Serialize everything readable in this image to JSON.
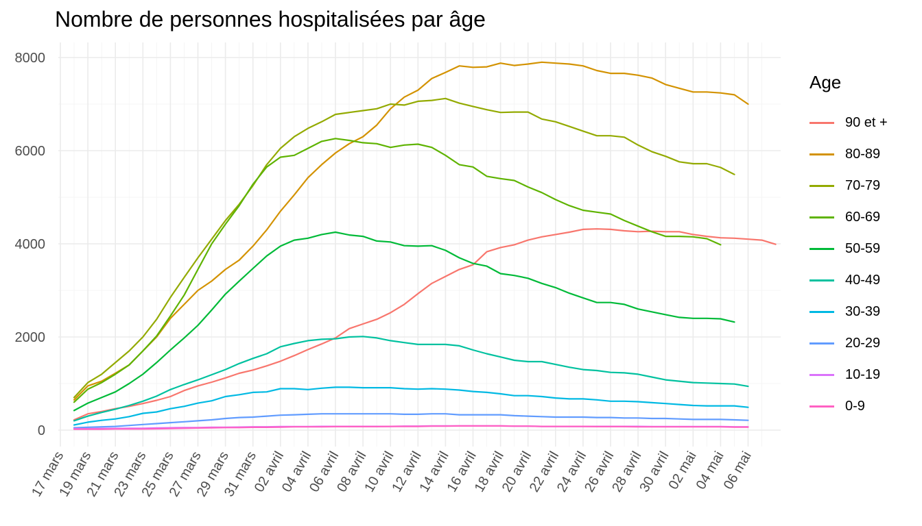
{
  "chart_data": {
    "type": "line",
    "title": "Nombre de personnes hospitalisées par âge",
    "xlabel": "",
    "ylabel": "",
    "ylim": [
      -400,
      8200
    ],
    "y_ticks": [
      0,
      2000,
      4000,
      6000,
      8000
    ],
    "x_tick_labels": [
      "17 mars",
      "19 mars",
      "21 mars",
      "23 mars",
      "25 mars",
      "27 mars",
      "29 mars",
      "31 mars",
      "02 avril",
      "04 avril",
      "06 avril",
      "08 avril",
      "10 avril",
      "12 avril",
      "14 avril",
      "16 avril",
      "18 avril",
      "20 avril",
      "22 avril",
      "24 avril",
      "26 avril",
      "28 avril",
      "30 avril",
      "02 mai",
      "04 mai",
      "06 mai"
    ],
    "x_start": "2020-03-18",
    "grid": true,
    "legend": {
      "title": "Age",
      "position": "right"
    },
    "series": [
      {
        "name": "90 et +",
        "color": "#F8766D",
        "values": [
          220,
          350,
          400,
          460,
          510,
          570,
          640,
          720,
          850,
          950,
          1030,
          1120,
          1220,
          1290,
          1380,
          1480,
          1600,
          1730,
          1850,
          1980,
          2180,
          2280,
          2380,
          2520,
          2700,
          2930,
          3150,
          3300,
          3450,
          3550,
          3830,
          3920,
          3980,
          4080,
          4150,
          4200,
          4250,
          4310,
          4320,
          4310,
          4280,
          4260,
          4270,
          4260,
          4260,
          4200,
          4160,
          4130,
          4120,
          4100,
          4080,
          3990
        ]
      },
      {
        "name": "80-89",
        "color": "#D39200",
        "values": [
          650,
          950,
          1050,
          1220,
          1400,
          1700,
          2000,
          2400,
          2700,
          3000,
          3200,
          3450,
          3650,
          3950,
          4300,
          4700,
          5050,
          5420,
          5700,
          5950,
          6150,
          6300,
          6550,
          6900,
          7150,
          7300,
          7550,
          7680,
          7820,
          7790,
          7800,
          7880,
          7830,
          7860,
          7900,
          7880,
          7860,
          7820,
          7720,
          7660,
          7660,
          7620,
          7560,
          7420,
          7340,
          7260,
          7260,
          7240,
          7200,
          7000
        ]
      },
      {
        "name": "70-79",
        "color": "#93AA00",
        "values": [
          700,
          1020,
          1200,
          1450,
          1700,
          2000,
          2380,
          2850,
          3280,
          3700,
          4100,
          4500,
          4850,
          5250,
          5700,
          6050,
          6300,
          6480,
          6620,
          6780,
          6820,
          6860,
          6900,
          7000,
          6980,
          7060,
          7080,
          7120,
          7020,
          6950,
          6880,
          6820,
          6830,
          6830,
          6680,
          6620,
          6520,
          6420,
          6320,
          6320,
          6290,
          6120,
          5980,
          5880,
          5760,
          5720,
          5720,
          5640,
          5490
        ]
      },
      {
        "name": "60-69",
        "color": "#5EB300",
        "values": [
          600,
          880,
          1020,
          1200,
          1400,
          1700,
          2020,
          2450,
          2900,
          3450,
          4000,
          4420,
          4820,
          5280,
          5650,
          5860,
          5900,
          6050,
          6200,
          6260,
          6220,
          6170,
          6150,
          6070,
          6120,
          6140,
          6070,
          5900,
          5700,
          5650,
          5450,
          5400,
          5360,
          5220,
          5100,
          4950,
          4820,
          4720,
          4680,
          4640,
          4500,
          4380,
          4260,
          4160,
          4160,
          4150,
          4110,
          3980
        ]
      },
      {
        "name": "50-59",
        "color": "#00BA38",
        "values": [
          420,
          580,
          700,
          820,
          1000,
          1200,
          1450,
          1720,
          1980,
          2250,
          2580,
          2920,
          3200,
          3470,
          3740,
          3950,
          4080,
          4120,
          4200,
          4250,
          4190,
          4160,
          4060,
          4040,
          3960,
          3950,
          3960,
          3860,
          3700,
          3580,
          3520,
          3360,
          3320,
          3260,
          3150,
          3060,
          2940,
          2840,
          2740,
          2740,
          2700,
          2600,
          2540,
          2480,
          2420,
          2400,
          2400,
          2390,
          2320
        ]
      },
      {
        "name": "40-49",
        "color": "#00C19F",
        "values": [
          200,
          300,
          380,
          450,
          530,
          620,
          730,
          870,
          980,
          1080,
          1190,
          1300,
          1430,
          1540,
          1640,
          1790,
          1860,
          1920,
          1950,
          1960,
          2000,
          2010,
          1980,
          1920,
          1880,
          1840,
          1840,
          1840,
          1810,
          1720,
          1640,
          1570,
          1500,
          1470,
          1470,
          1410,
          1350,
          1300,
          1280,
          1240,
          1230,
          1200,
          1140,
          1080,
          1050,
          1020,
          1010,
          1000,
          990,
          940
        ]
      },
      {
        "name": "30-39",
        "color": "#00B9E3",
        "values": [
          110,
          170,
          210,
          240,
          290,
          360,
          390,
          460,
          510,
          580,
          630,
          720,
          760,
          810,
          820,
          890,
          890,
          870,
          900,
          920,
          920,
          910,
          910,
          910,
          890,
          880,
          890,
          880,
          860,
          830,
          810,
          780,
          740,
          740,
          720,
          690,
          670,
          670,
          650,
          620,
          620,
          610,
          590,
          570,
          550,
          530,
          520,
          520,
          520,
          490
        ]
      },
      {
        "name": "20-29",
        "color": "#619CFF",
        "values": [
          50,
          60,
          70,
          80,
          100,
          120,
          140,
          160,
          180,
          200,
          220,
          250,
          270,
          280,
          300,
          320,
          330,
          340,
          350,
          350,
          350,
          350,
          350,
          350,
          340,
          340,
          350,
          350,
          330,
          330,
          330,
          330,
          310,
          300,
          290,
          280,
          280,
          280,
          270,
          270,
          260,
          260,
          250,
          250,
          240,
          230,
          230,
          230,
          220,
          210
        ]
      },
      {
        "name": "10-19",
        "color": "#DB72FB",
        "values": [
          30,
          30,
          35,
          35,
          40,
          40,
          45,
          50,
          55,
          55,
          60,
          60,
          65,
          70,
          70,
          75,
          75,
          75,
          80,
          80,
          80,
          80,
          80,
          80,
          85,
          85,
          90,
          90,
          90,
          90,
          90,
          90,
          85,
          85,
          80,
          80,
          80,
          80,
          80,
          80,
          80,
          80,
          75,
          75,
          75,
          75,
          75,
          75,
          70,
          70
        ]
      },
      {
        "name": "0-9",
        "color": "#FF61C3",
        "values": [
          20,
          20,
          20,
          25,
          25,
          25,
          30,
          35,
          40,
          45,
          50,
          55,
          55,
          60,
          60,
          65,
          70,
          70,
          70,
          75,
          75,
          75,
          75,
          80,
          80,
          80,
          85,
          85,
          90,
          90,
          90,
          90,
          85,
          85,
          80,
          80,
          80,
          80,
          75,
          75,
          75,
          70,
          70,
          70,
          70,
          70,
          70,
          70,
          65,
          65
        ]
      }
    ]
  }
}
